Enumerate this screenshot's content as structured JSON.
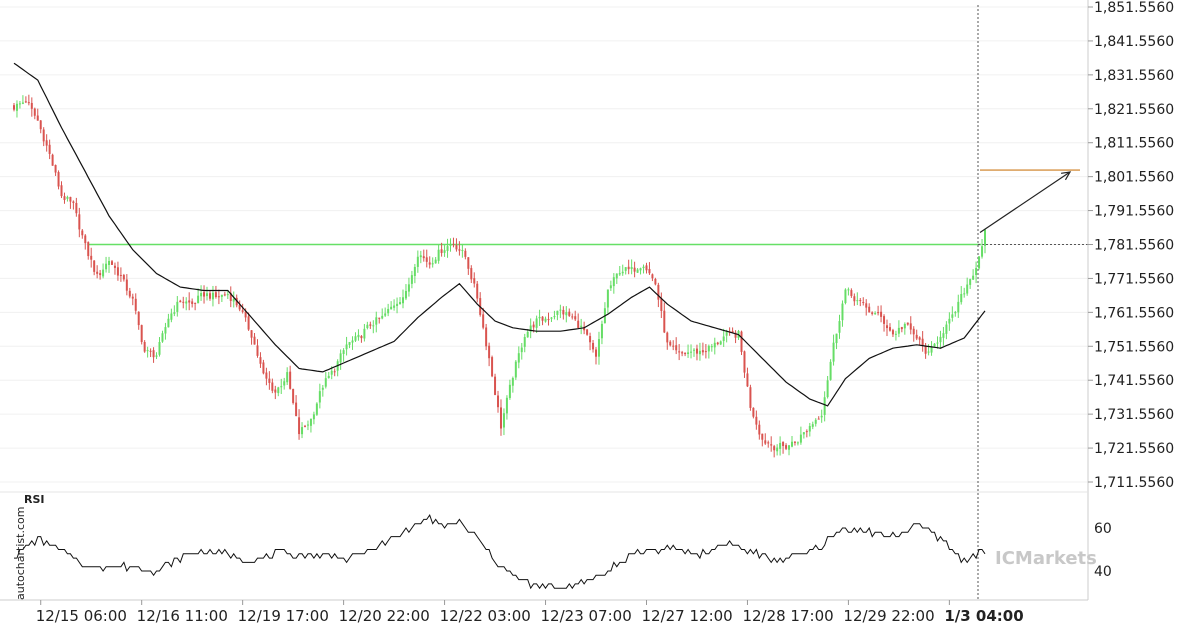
{
  "watermark": "autochartist.com",
  "brand": "ICMarkets",
  "chart_data": {
    "type": "candlestick",
    "title": "",
    "price_axis": {
      "ticks": [
        "1,851.5560",
        "1,841.5560",
        "1,831.5560",
        "1,821.5560",
        "1,811.5560",
        "1,801.5560",
        "1,791.5560",
        "1,781.5560",
        "1,771.5560",
        "1,761.5560",
        "1,751.5560",
        "1,741.5560",
        "1,731.5560",
        "1,721.5560",
        "1,711.5560"
      ],
      "ylim": [
        1706,
        1853
      ]
    },
    "time_axis": {
      "ticks": [
        "12/15 06:00",
        "12/16 11:00",
        "12/19 17:00",
        "12/20 22:00",
        "12/22 03:00",
        "12/23 07:00",
        "12/27 12:00",
        "12/28 17:00",
        "12/29 22:00",
        "1/3 04:00"
      ],
      "tick_index": [
        9,
        43,
        77,
        111,
        145,
        179,
        213,
        247,
        281,
        315
      ]
    },
    "key_level": 1781.556,
    "projected_target": 1803.5,
    "current_price": 1781.556,
    "colors": {
      "bull": "#66dd66",
      "bear": "#d9534f",
      "level": "#66e066",
      "target": "#cc7a1a",
      "ma": "#111111",
      "grid": "#dddddd"
    },
    "candle_close_anchors": [
      [
        0,
        1822
      ],
      [
        4,
        1824
      ],
      [
        8,
        1818
      ],
      [
        12,
        1808
      ],
      [
        16,
        1796
      ],
      [
        20,
        1793
      ],
      [
        24,
        1781
      ],
      [
        28,
        1772
      ],
      [
        32,
        1777
      ],
      [
        36,
        1772
      ],
      [
        40,
        1765
      ],
      [
        44,
        1750
      ],
      [
        48,
        1749
      ],
      [
        52,
        1760
      ],
      [
        56,
        1765
      ],
      [
        60,
        1764
      ],
      [
        64,
        1767
      ],
      [
        68,
        1766
      ],
      [
        72,
        1767
      ],
      [
        76,
        1763
      ],
      [
        80,
        1755
      ],
      [
        84,
        1743
      ],
      [
        88,
        1738
      ],
      [
        92,
        1743
      ],
      [
        96,
        1726
      ],
      [
        100,
        1730
      ],
      [
        104,
        1740
      ],
      [
        108,
        1745
      ],
      [
        112,
        1752
      ],
      [
        116,
        1754
      ],
      [
        120,
        1758
      ],
      [
        124,
        1760
      ],
      [
        128,
        1764
      ],
      [
        132,
        1767
      ],
      [
        136,
        1779
      ],
      [
        140,
        1776
      ],
      [
        144,
        1780
      ],
      [
        148,
        1782
      ],
      [
        152,
        1778
      ],
      [
        156,
        1766
      ],
      [
        160,
        1748
      ],
      [
        164,
        1728
      ],
      [
        168,
        1743
      ],
      [
        172,
        1755
      ],
      [
        176,
        1759
      ],
      [
        180,
        1760
      ],
      [
        184,
        1762
      ],
      [
        188,
        1760
      ],
      [
        192,
        1756
      ],
      [
        196,
        1748
      ],
      [
        200,
        1768
      ],
      [
        204,
        1774
      ],
      [
        208,
        1774
      ],
      [
        212,
        1776
      ],
      [
        216,
        1770
      ],
      [
        220,
        1752
      ],
      [
        224,
        1749
      ],
      [
        228,
        1750
      ],
      [
        232,
        1750
      ],
      [
        236,
        1752
      ],
      [
        240,
        1755
      ],
      [
        244,
        1755
      ],
      [
        248,
        1734
      ],
      [
        252,
        1724
      ],
      [
        256,
        1722
      ],
      [
        260,
        1722
      ],
      [
        264,
        1724
      ],
      [
        268,
        1728
      ],
      [
        272,
        1732
      ],
      [
        276,
        1752
      ],
      [
        280,
        1768
      ],
      [
        284,
        1765
      ],
      [
        288,
        1762
      ],
      [
        292,
        1760
      ],
      [
        296,
        1755
      ],
      [
        300,
        1758
      ],
      [
        304,
        1754
      ],
      [
        308,
        1749
      ],
      [
        312,
        1755
      ],
      [
        316,
        1760
      ],
      [
        320,
        1768
      ],
      [
        324,
        1775
      ],
      [
        327,
        1785
      ]
    ],
    "ma_anchors": [
      [
        0,
        1835
      ],
      [
        8,
        1830
      ],
      [
        16,
        1816
      ],
      [
        24,
        1803
      ],
      [
        32,
        1790
      ],
      [
        40,
        1780
      ],
      [
        48,
        1773
      ],
      [
        56,
        1769
      ],
      [
        64,
        1768
      ],
      [
        72,
        1768
      ],
      [
        80,
        1760
      ],
      [
        88,
        1752
      ],
      [
        96,
        1745
      ],
      [
        104,
        1744
      ],
      [
        112,
        1747
      ],
      [
        120,
        1750
      ],
      [
        128,
        1753
      ],
      [
        136,
        1760
      ],
      [
        144,
        1766
      ],
      [
        150,
        1770
      ],
      [
        156,
        1764
      ],
      [
        162,
        1759
      ],
      [
        168,
        1757
      ],
      [
        176,
        1756
      ],
      [
        184,
        1756
      ],
      [
        192,
        1757
      ],
      [
        200,
        1761
      ],
      [
        208,
        1766
      ],
      [
        214,
        1769
      ],
      [
        220,
        1764
      ],
      [
        228,
        1759
      ],
      [
        236,
        1757
      ],
      [
        244,
        1755
      ],
      [
        252,
        1748
      ],
      [
        260,
        1741
      ],
      [
        268,
        1736
      ],
      [
        274,
        1734
      ],
      [
        280,
        1742
      ],
      [
        288,
        1748
      ],
      [
        296,
        1751
      ],
      [
        304,
        1752
      ],
      [
        312,
        1751
      ],
      [
        320,
        1754
      ],
      [
        327,
        1762
      ]
    ],
    "rsi": {
      "label": "RSI",
      "ticks": [
        "60",
        "40"
      ],
      "ylim": [
        27,
        67
      ],
      "anchors": [
        [
          0,
          47
        ],
        [
          8,
          55
        ],
        [
          16,
          50
        ],
        [
          24,
          42
        ],
        [
          32,
          42
        ],
        [
          40,
          42
        ],
        [
          48,
          40
        ],
        [
          56,
          46
        ],
        [
          64,
          50
        ],
        [
          72,
          48
        ],
        [
          80,
          45
        ],
        [
          88,
          48
        ],
        [
          96,
          47
        ],
        [
          104,
          48
        ],
        [
          112,
          46
        ],
        [
          120,
          50
        ],
        [
          128,
          55
        ],
        [
          136,
          62
        ],
        [
          140,
          64
        ],
        [
          144,
          60
        ],
        [
          150,
          63
        ],
        [
          156,
          55
        ],
        [
          162,
          45
        ],
        [
          168,
          37
        ],
        [
          176,
          33
        ],
        [
          184,
          32
        ],
        [
          192,
          34
        ],
        [
          200,
          40
        ],
        [
          208,
          48
        ],
        [
          216,
          50
        ],
        [
          224,
          50
        ],
        [
          232,
          48
        ],
        [
          240,
          53
        ],
        [
          248,
          49
        ],
        [
          256,
          45
        ],
        [
          264,
          47
        ],
        [
          272,
          52
        ],
        [
          280,
          60
        ],
        [
          288,
          58
        ],
        [
          296,
          56
        ],
        [
          304,
          62
        ],
        [
          312,
          55
        ],
        [
          320,
          45
        ],
        [
          327,
          49
        ]
      ]
    }
  }
}
